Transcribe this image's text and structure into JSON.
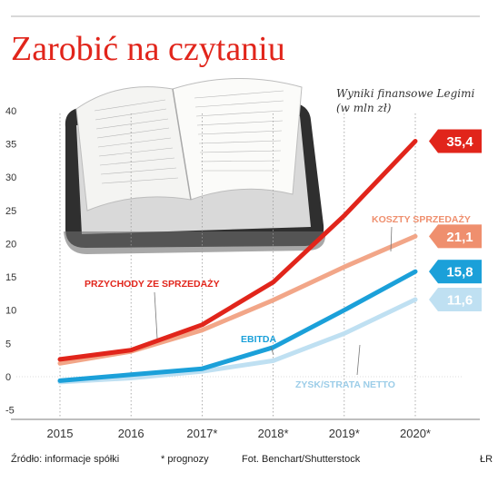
{
  "header": {
    "title": "Zarobić na czytaniu",
    "subtitle_line1": "Wyniki finansowe Legimi",
    "subtitle_line2": "(w mln zł)"
  },
  "footer": {
    "source": "Źródło: informacje spółki",
    "note": "* prognozy",
    "photo": "Fot. Benchart/Shutterstock",
    "initials": "ŁR"
  },
  "chart_data": {
    "type": "line",
    "categories": [
      "2015",
      "2016",
      "2017*",
      "2018*",
      "2019*",
      "2020*"
    ],
    "ylim": [
      -5,
      40
    ],
    "yticks": [
      -5,
      0,
      5,
      10,
      15,
      20,
      25,
      30,
      35,
      40
    ],
    "grid": "dotted vertical lines at years",
    "series": [
      {
        "name": "PRZYCHODY ZE SPRZEDAŻY",
        "values": [
          2.6,
          4.0,
          7.8,
          14.2,
          24.2,
          35.4
        ],
        "end_label": "35,4",
        "color": "#e1251b",
        "box_color": "#e1251b"
      },
      {
        "name": "KOSZTY SPRZEDAŻY",
        "values": [
          2.0,
          3.8,
          7.0,
          11.5,
          16.5,
          21.1
        ],
        "end_label": "21,1",
        "color": "#f2a688",
        "box_color": "#ef8f6e"
      },
      {
        "name": "EBITDA",
        "values": [
          -0.6,
          0.3,
          1.2,
          4.4,
          10.0,
          15.8
        ],
        "end_label": "15,8",
        "color": "#1ba0d9",
        "box_color": "#1ba0d9"
      },
      {
        "name": "ZYSK/STRATA NETTO",
        "values": [
          -0.8,
          -0.2,
          0.8,
          2.4,
          6.5,
          11.6
        ],
        "end_label": "11,6",
        "color": "#bfe0f2",
        "box_color": "#bfe0f2"
      }
    ]
  }
}
